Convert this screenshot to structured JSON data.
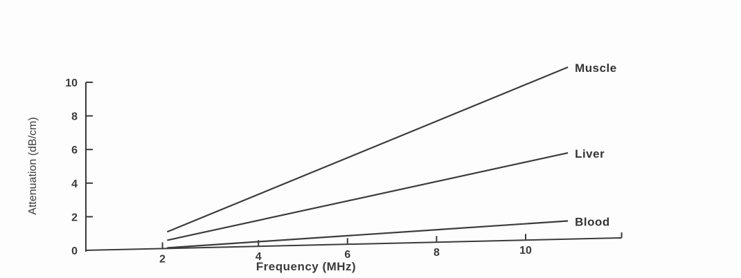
{
  "chart_data": {
    "type": "line",
    "title": "",
    "xlabel": "Frequency (MHz)",
    "ylabel": "Attenuation (dB/cm)",
    "xlim": [
      0,
      12
    ],
    "ylim": [
      0,
      10
    ],
    "x_ticks": [
      "2",
      "4",
      "6",
      "8",
      "10"
    ],
    "y_ticks": [
      "0",
      "2",
      "4",
      "6",
      "8",
      "10"
    ],
    "grid": false,
    "legend": "inline labels at line ends",
    "series": [
      {
        "name": "Muscle",
        "x": [
          1,
          10
        ],
        "values": [
          1.1,
          10.9
        ]
      },
      {
        "name": "Liver",
        "x": [
          1,
          10
        ],
        "values": [
          0.6,
          5.8
        ]
      },
      {
        "name": "Blood",
        "x": [
          1,
          10
        ],
        "values": [
          0.15,
          1.75
        ]
      }
    ]
  }
}
